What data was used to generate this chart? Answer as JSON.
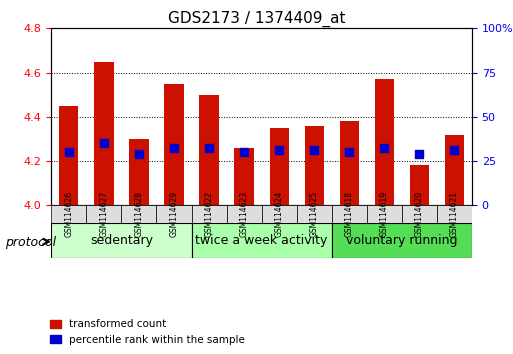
{
  "title": "GDS2173 / 1374409_at",
  "samples": [
    "GSM114626",
    "GSM114627",
    "GSM114628",
    "GSM114629",
    "GSM114622",
    "GSM114623",
    "GSM114624",
    "GSM114625",
    "GSM114618",
    "GSM114619",
    "GSM114620",
    "GSM114621"
  ],
  "transformed_count": [
    4.45,
    4.65,
    4.3,
    4.55,
    4.5,
    4.26,
    4.35,
    4.36,
    4.38,
    4.57,
    4.18,
    4.32
  ],
  "percentile_rank": [
    4.24,
    4.28,
    4.23,
    4.26,
    4.26,
    4.24,
    4.25,
    4.25,
    4.24,
    4.26,
    4.23,
    4.25
  ],
  "bar_bottom": 4.0,
  "ylim_left": [
    4.0,
    4.8
  ],
  "ylim_right": [
    0,
    100
  ],
  "yticks_left": [
    4.0,
    4.2,
    4.4,
    4.6,
    4.8
  ],
  "yticks_right": [
    0,
    25,
    50,
    75,
    100
  ],
  "ytick_labels_right": [
    "0",
    "25",
    "50",
    "75",
    "100%"
  ],
  "groups": [
    {
      "label": "sedentary",
      "indices": [
        0,
        1,
        2,
        3
      ],
      "color": "#ccffcc"
    },
    {
      "label": "twice a week activity",
      "indices": [
        4,
        5,
        6,
        7
      ],
      "color": "#aaffaa"
    },
    {
      "label": "voluntary running",
      "indices": [
        8,
        9,
        10,
        11
      ],
      "color": "#55dd55"
    }
  ],
  "bar_color": "#cc1100",
  "dot_color": "#0000cc",
  "bar_width": 0.55,
  "dot_size": 30,
  "protocol_label": "protocol",
  "legend_items": [
    {
      "label": "transformed count",
      "color": "#cc1100"
    },
    {
      "label": "percentile rank within the sample",
      "color": "#0000cc"
    }
  ],
  "grid_color": "#000000",
  "title_fontsize": 11,
  "tick_fontsize": 8,
  "group_label_fontsize": 9
}
